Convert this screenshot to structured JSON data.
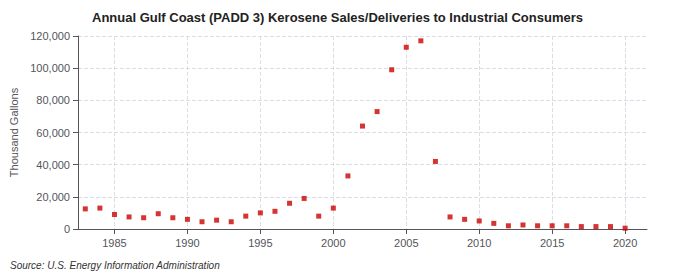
{
  "chart_data": {
    "type": "scatter",
    "title": "Annual Gulf Coast (PADD 3) Kerosene Sales/Deliveries to Industrial Consumers",
    "ylabel": "Thousand Gallons",
    "source": "Source: U.S. Energy Information Administration",
    "x": [
      1983,
      1984,
      1985,
      1986,
      1987,
      1988,
      1989,
      1990,
      1991,
      1992,
      1993,
      1994,
      1995,
      1996,
      1997,
      1998,
      1999,
      2000,
      2001,
      2002,
      2003,
      2004,
      2005,
      2006,
      2007,
      2008,
      2009,
      2010,
      2011,
      2012,
      2013,
      2014,
      2015,
      2016,
      2017,
      2018,
      2019,
      2020
    ],
    "values": [
      12500,
      13000,
      9000,
      7500,
      7000,
      9500,
      7000,
      6000,
      4500,
      5500,
      4500,
      8000,
      10000,
      11000,
      16000,
      19000,
      8000,
      13000,
      33000,
      64000,
      73000,
      99000,
      113000,
      117000,
      42000,
      7500,
      6000,
      5000,
      3500,
      2000,
      2500,
      2000,
      2000,
      2000,
      1500,
      1500,
      1500,
      500
    ],
    "color": "#cc0000",
    "marker": "square",
    "xlim": [
      1982.5,
      2021.5
    ],
    "xticks": [
      1985,
      1990,
      1995,
      2000,
      2005,
      2010,
      2015,
      2020
    ],
    "ylim": [
      0,
      120000
    ],
    "yticks": [
      0,
      {
        "value": 20000,
        "label": "20,000"
      },
      {
        "value": 40000,
        "label": "40,000"
      },
      {
        "value": 60000,
        "label": "60,000"
      },
      {
        "value": 80000,
        "label": "80,000"
      },
      {
        "value": 100000,
        "label": "100,000"
      },
      {
        "value": 120000,
        "label": "120,000"
      }
    ],
    "grid": true
  }
}
